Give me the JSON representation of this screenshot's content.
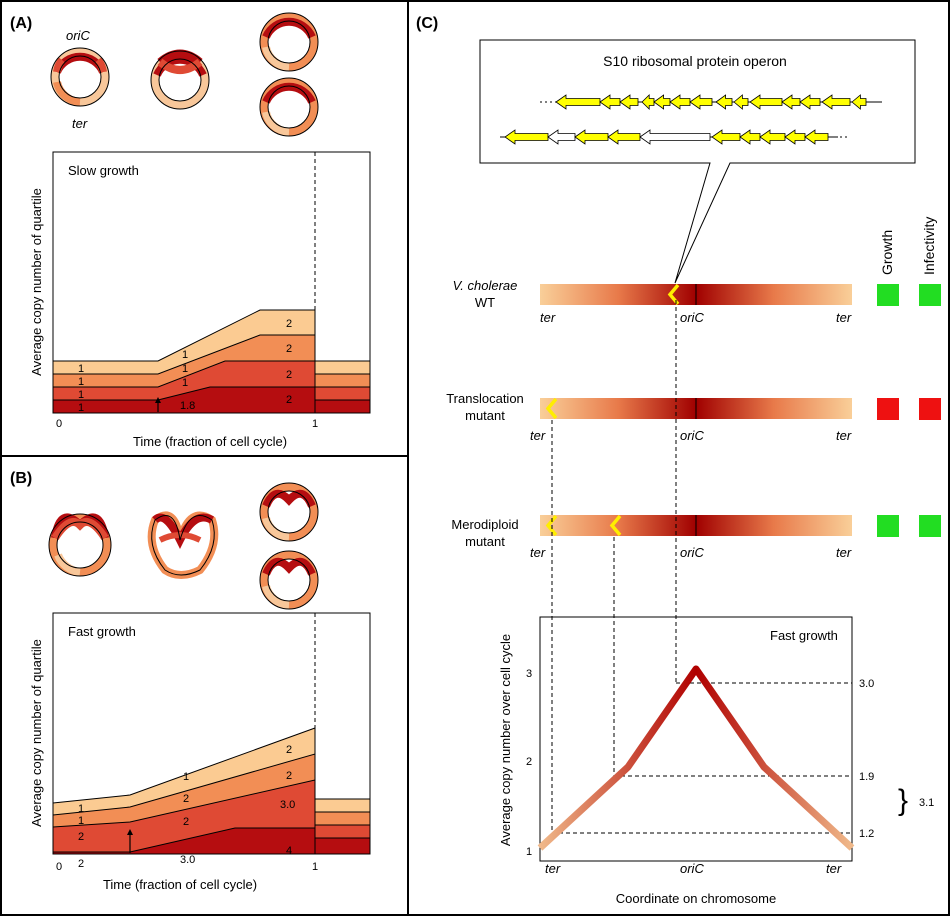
{
  "panels": {
    "A": {
      "label": "(A)",
      "oric_label": "oriC",
      "ter_label": "ter",
      "chart_label": "Slow growth",
      "ylabel": "Average copy number of quartile",
      "xlabel": "Time (fraction of cell cycle)",
      "tick_0": "0",
      "tick_1": "1",
      "quartile_labels": {
        "left": [
          "1",
          "1",
          "1",
          "1"
        ],
        "mid": [
          "1",
          "1",
          "1",
          "1.8"
        ],
        "right": [
          "2",
          "2",
          "2",
          "2"
        ]
      }
    },
    "B": {
      "label": "(B)",
      "chart_label": "Fast growth",
      "ylabel": "Average copy number of quartile",
      "xlabel": "Time (fraction of cell cycle)",
      "tick_0": "0",
      "tick_1": "1",
      "quartile_labels": {
        "left": [
          "1",
          "1",
          "2",
          "2"
        ],
        "mid": [
          "1",
          "2",
          "2",
          "3.0"
        ],
        "right": [
          "2",
          "2",
          "3.0",
          "4"
        ]
      }
    },
    "C": {
      "label": "(C)",
      "operon_title": "S10 ribosomal protein operon",
      "columns": {
        "growth": "Growth",
        "infectivity": "Infectivity"
      },
      "strains": [
        {
          "name1": "V. cholerae",
          "name2": "WT",
          "italic1": true,
          "growth": "#22dd22",
          "infectivity": "#22dd22"
        },
        {
          "name1": "Translocation",
          "name2": "mutant",
          "italic1": false,
          "growth": "#ee1111",
          "infectivity": "#ee1111"
        },
        {
          "name1": "Merodiploid",
          "name2": "mutant",
          "italic1": false,
          "growth": "#22dd22",
          "infectivity": "#22dd22"
        }
      ],
      "bar_labels": {
        "ter_left": "ter",
        "oric": "oriC",
        "ter_right": "ter"
      },
      "plot": {
        "title": "Fast growth",
        "ylabel": "Average copy number over cell cycle",
        "xlabel": "Coordinate on chromosome",
        "yticks": [
          "1",
          "2",
          "3"
        ],
        "xticks": [
          "ter",
          "oriC",
          "ter"
        ],
        "guide_values": [
          "3.0",
          "1.9",
          "1.2"
        ],
        "ratio_label": "3.1"
      }
    }
  },
  "colors": {
    "q1": "#fbcb92",
    "q2": "#f28e55",
    "q3": "#df4a34",
    "q4": "#b50d10",
    "dark": "#a00000",
    "light": "#f9cf99",
    "gene": "#ffff00"
  }
}
